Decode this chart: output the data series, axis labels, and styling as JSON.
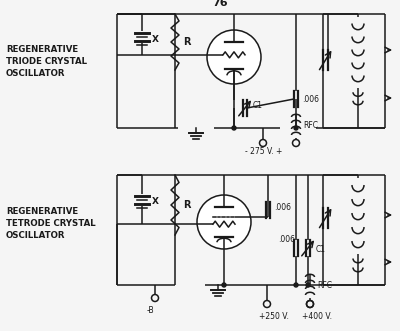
{
  "bg_color": "#f5f5f5",
  "line_color": "#1a1a1a",
  "label1_lines": [
    "REGENERATIVE",
    "TRIODE CRYSTAL",
    "OSCILLATOR"
  ],
  "label2_lines": [
    "REGENERATIVE",
    "TETRODE CRYSTAL",
    "OSCILLATOR"
  ],
  "tube_label": "76",
  "voltage1": "- 275 V. +",
  "voltage2": "-B",
  "voltage3": "+250 V.",
  "voltage4": "+400 V.",
  "rfc_label": "RFC",
  "r_label": "R",
  "c1_label": "C1",
  "cap_label": ".006"
}
